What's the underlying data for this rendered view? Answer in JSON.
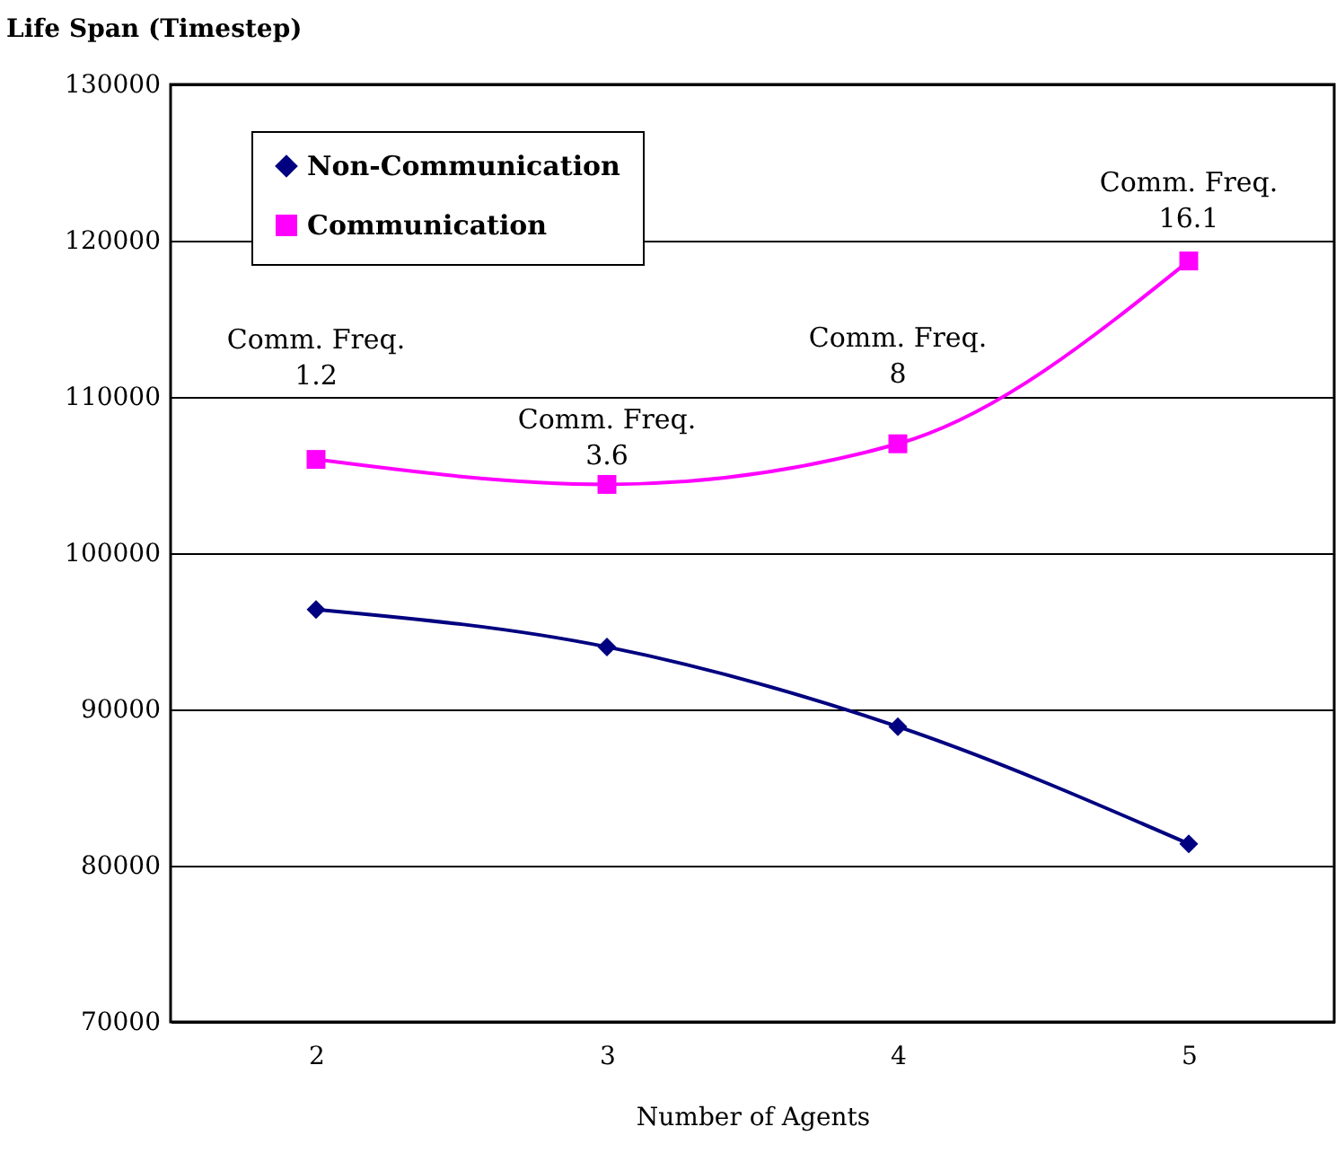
{
  "chart_data": {
    "type": "line",
    "xlabel": "Number of Agents",
    "ylabel": "Life Span (Timestep)",
    "categories": [
      "2",
      "3",
      "4",
      "5"
    ],
    "series": [
      {
        "name": "Non-Communication",
        "color": "#000080",
        "marker": "diamond",
        "values": [
          96400,
          94000,
          88900,
          81400
        ]
      },
      {
        "name": "Communication",
        "color": "#ff00ff",
        "marker": "square",
        "values": [
          106000,
          104400,
          107000,
          118700
        ]
      }
    ],
    "ylim": [
      70000,
      130000
    ],
    "yticks": [
      70000,
      80000,
      90000,
      100000,
      110000,
      120000,
      130000
    ],
    "grid": "y",
    "legend": "top left",
    "annotations": [
      {
        "text": "Comm. Freq.\n1.2",
        "x": "2",
        "y": 106000
      },
      {
        "text": "Comm. Freq.\n3.6",
        "x": "3",
        "y": 104400
      },
      {
        "text": "Comm. Freq.\n8",
        "x": "4",
        "y": 107000
      },
      {
        "text": "Comm. Freq.\n16.1",
        "x": "5",
        "y": 118700
      }
    ]
  }
}
